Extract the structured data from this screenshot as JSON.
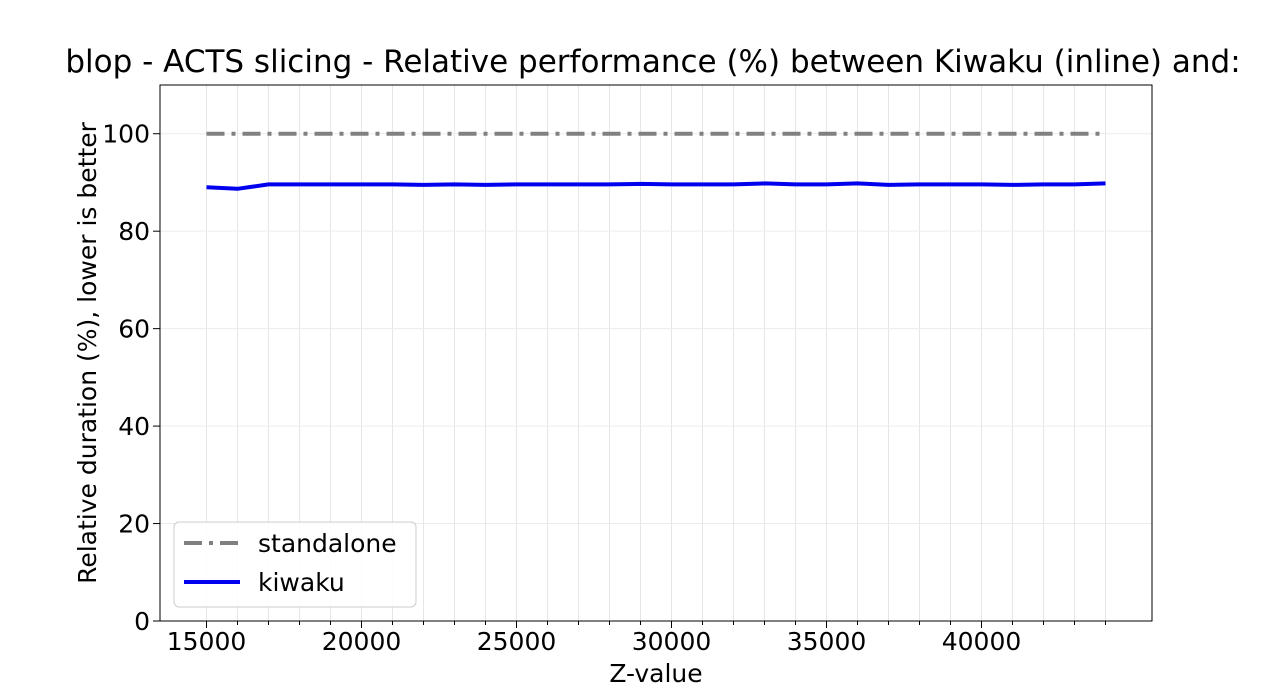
{
  "chart_data": {
    "type": "line",
    "title": "blop - ACTS slicing - Relative performance (%) between Kiwaku (inline) and:",
    "xlabel": "Z-value",
    "ylabel": "Relative duration (%), lower is better",
    "xlim": [
      13500,
      45500
    ],
    "ylim": [
      0,
      110
    ],
    "xticks": [
      15000,
      20000,
      25000,
      30000,
      35000,
      40000
    ],
    "xtick_labels": [
      "15000",
      "20000",
      "25000",
      "30000",
      "35000",
      "40000"
    ],
    "x_minor_ticks": [
      15000,
      16000,
      17000,
      18000,
      19000,
      20000,
      21000,
      22000,
      23000,
      24000,
      25000,
      26000,
      27000,
      28000,
      29000,
      30000,
      31000,
      32000,
      33000,
      34000,
      35000,
      36000,
      37000,
      38000,
      39000,
      40000,
      41000,
      42000,
      43000,
      44000
    ],
    "yticks": [
      0,
      20,
      40,
      60,
      80,
      100
    ],
    "ytick_labels": [
      "0",
      "20",
      "40",
      "60",
      "80",
      "100"
    ],
    "grid": true,
    "legend_position": "lower-left",
    "x": [
      15000,
      16000,
      17000,
      18000,
      19000,
      20000,
      21000,
      22000,
      23000,
      24000,
      25000,
      26000,
      27000,
      28000,
      29000,
      30000,
      31000,
      32000,
      33000,
      34000,
      35000,
      36000,
      37000,
      38000,
      39000,
      40000,
      41000,
      42000,
      43000,
      44000
    ],
    "series": [
      {
        "name": "standalone",
        "color": "#808080",
        "style": "dashdot",
        "values": [
          100,
          100,
          100,
          100,
          100,
          100,
          100,
          100,
          100,
          100,
          100,
          100,
          100,
          100,
          100,
          100,
          100,
          100,
          100,
          100,
          100,
          100,
          100,
          100,
          100,
          100,
          100,
          100,
          100,
          100
        ]
      },
      {
        "name": "kiwaku",
        "color": "#0000ee",
        "style": "solid",
        "values": [
          89.0,
          88.7,
          89.6,
          89.6,
          89.6,
          89.6,
          89.6,
          89.5,
          89.6,
          89.5,
          89.6,
          89.6,
          89.6,
          89.6,
          89.7,
          89.6,
          89.6,
          89.6,
          89.8,
          89.6,
          89.6,
          89.8,
          89.5,
          89.6,
          89.6,
          89.6,
          89.5,
          89.6,
          89.6,
          89.8
        ]
      }
    ]
  }
}
